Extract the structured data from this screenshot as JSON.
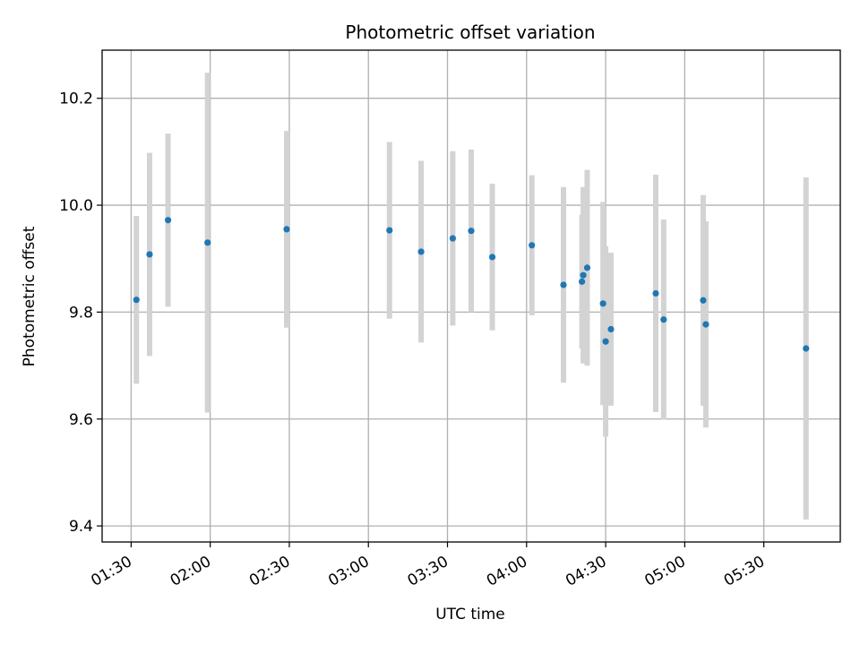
{
  "chart_data": {
    "type": "scatter",
    "title": "Photometric offset variation",
    "xlabel": "UTC time",
    "ylabel": "Photometric offset",
    "xlim": [
      "01:19",
      "05:59"
    ],
    "ylim": [
      9.37,
      10.29
    ],
    "grid": true,
    "xticks": [
      "01:30",
      "02:00",
      "02:30",
      "03:00",
      "03:30",
      "04:00",
      "04:30",
      "05:00",
      "05:30"
    ],
    "yticks": [
      "9.4",
      "9.6",
      "9.8",
      "10.0",
      "10.2"
    ],
    "colors": {
      "marker": "#1f77b4",
      "errorbar": "#d3d3d3",
      "grid": "#b0b0b0"
    },
    "points": [
      {
        "t": "01:32",
        "y": 9.823,
        "err": 0.157
      },
      {
        "t": "01:37",
        "y": 9.908,
        "err": 0.19
      },
      {
        "t": "01:44",
        "y": 9.972,
        "err": 0.162
      },
      {
        "t": "01:59",
        "y": 9.93,
        "err": 0.318
      },
      {
        "t": "02:29",
        "y": 9.955,
        "err": 0.184
      },
      {
        "t": "03:08",
        "y": 9.953,
        "err": 0.165
      },
      {
        "t": "03:20",
        "y": 9.913,
        "err": 0.17
      },
      {
        "t": "03:32",
        "y": 9.938,
        "err": 0.163
      },
      {
        "t": "03:39",
        "y": 9.952,
        "err": 0.152
      },
      {
        "t": "03:47",
        "y": 9.903,
        "err": 0.137
      },
      {
        "t": "04:02",
        "y": 9.925,
        "err": 0.131
      },
      {
        "t": "04:14",
        "y": 9.851,
        "err": 0.183
      },
      {
        "t": "04:21",
        "y": 9.857,
        "err": 0.125
      },
      {
        "t": "04:21.5",
        "y": 9.869,
        "err": 0.165
      },
      {
        "t": "04:23",
        "y": 9.883,
        "err": 0.183
      },
      {
        "t": "04:29",
        "y": 9.816,
        "err": 0.19
      },
      {
        "t": "04:30",
        "y": 9.745,
        "err": 0.178
      },
      {
        "t": "04:32",
        "y": 9.768,
        "err": 0.143
      },
      {
        "t": "04:49",
        "y": 9.835,
        "err": 0.222
      },
      {
        "t": "04:52",
        "y": 9.786,
        "err": 0.187
      },
      {
        "t": "05:07",
        "y": 9.822,
        "err": 0.197
      },
      {
        "t": "05:08",
        "y": 9.777,
        "err": 0.193
      },
      {
        "t": "05:46",
        "y": 9.732,
        "err": 0.32
      }
    ]
  }
}
